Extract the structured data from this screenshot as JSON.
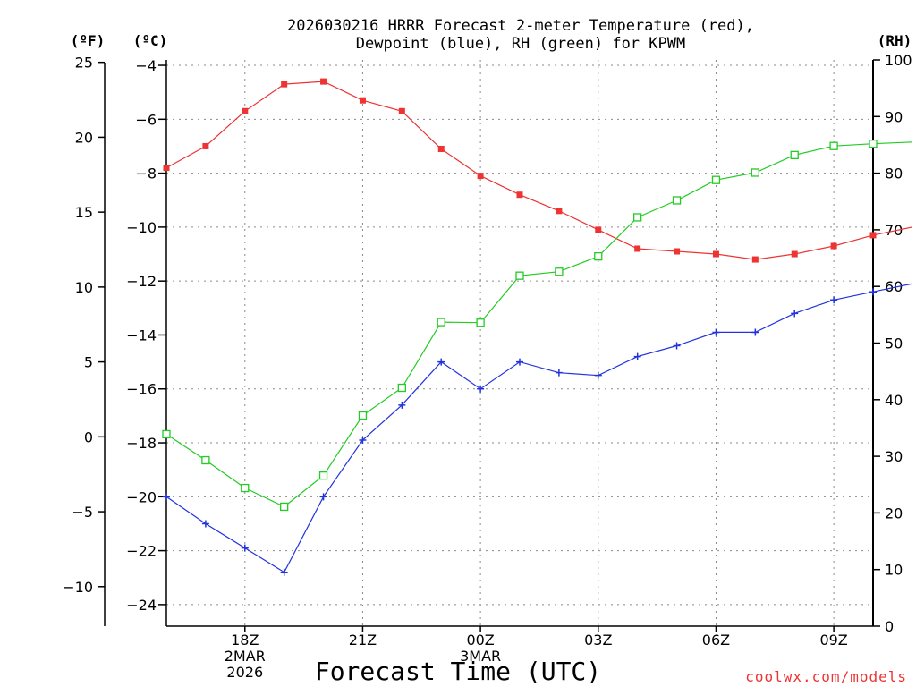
{
  "chart_data": {
    "type": "line",
    "title_line1": "2026030216 HRRR Forecast 2-meter Temperature (red),",
    "title_line2": "Dewpoint (blue), RH (green) for KPWM",
    "xlabel": "Forecast Time (UTC)",
    "unit_labels": {
      "f": "(ºF)",
      "c": "(ºC)",
      "rh": "(RH)"
    },
    "credit": "coolwx.com/models",
    "colors": {
      "temperature": "#ee3333",
      "dewpoint": "#2233dd",
      "rh": "#22cc22"
    },
    "hours_utc": [
      16,
      17,
      18,
      19,
      20,
      21,
      22,
      23,
      24,
      25,
      26,
      27,
      28,
      29,
      30,
      31,
      32,
      33,
      34,
      35
    ],
    "xlim_hours": [
      16,
      34
    ],
    "x_ticks": [
      {
        "hour": 18,
        "lines": [
          "18Z",
          "2MAR",
          "2026"
        ]
      },
      {
        "hour": 21,
        "lines": [
          "21Z"
        ]
      },
      {
        "hour": 24,
        "lines": [
          "00Z",
          "3MAR"
        ]
      },
      {
        "hour": 27,
        "lines": [
          "03Z"
        ]
      },
      {
        "hour": 30,
        "lines": [
          "06Z"
        ]
      },
      {
        "hour": 33,
        "lines": [
          "09Z"
        ]
      }
    ],
    "c_axis": {
      "ylim": [
        -24.8,
        -3.8
      ],
      "ticks": [
        -4,
        -6,
        -8,
        -10,
        -12,
        -14,
        -16,
        -18,
        -20,
        -22,
        -24
      ]
    },
    "f_axis": {
      "ticks": [
        25,
        20,
        15,
        10,
        5,
        0,
        -5,
        -10
      ]
    },
    "rh_axis": {
      "ylim": [
        0,
        100
      ],
      "ticks": [
        100,
        90,
        80,
        70,
        60,
        50,
        40,
        30,
        20,
        10,
        0
      ]
    },
    "series": [
      {
        "name": "2-meter Temperature (ºC)",
        "key": "temperature",
        "axis": "c",
        "marker": "filled-square",
        "values": [
          -7.8,
          -7.0,
          -5.7,
          -4.7,
          -4.6,
          -5.3,
          -5.7,
          -7.1,
          -8.1,
          -8.8,
          -9.4,
          -10.1,
          -10.8,
          -10.9,
          -11.0,
          -11.2,
          -11.0,
          -10.7,
          -10.3,
          -10.0
        ]
      },
      {
        "name": "Dewpoint (ºC)",
        "key": "dewpoint",
        "axis": "c",
        "marker": "plus",
        "values": [
          -20.0,
          -21.0,
          -21.9,
          -22.8,
          -20.0,
          -17.9,
          -16.6,
          -15.0,
          -16.0,
          -15.0,
          -15.4,
          -15.5,
          -14.8,
          -14.4,
          -13.9,
          -13.9,
          -13.2,
          -12.7,
          -12.4,
          -12.1
        ]
      },
      {
        "name": "RH (%)",
        "key": "rh",
        "axis": "rh",
        "marker": "open-square",
        "values": [
          33.9,
          29.3,
          24.4,
          21.1,
          26.6,
          37.2,
          42.1,
          53.7,
          53.6,
          61.9,
          62.6,
          65.3,
          72.2,
          75.2,
          78.8,
          80.1,
          83.2,
          84.8,
          85.2,
          85.5
        ]
      }
    ]
  }
}
